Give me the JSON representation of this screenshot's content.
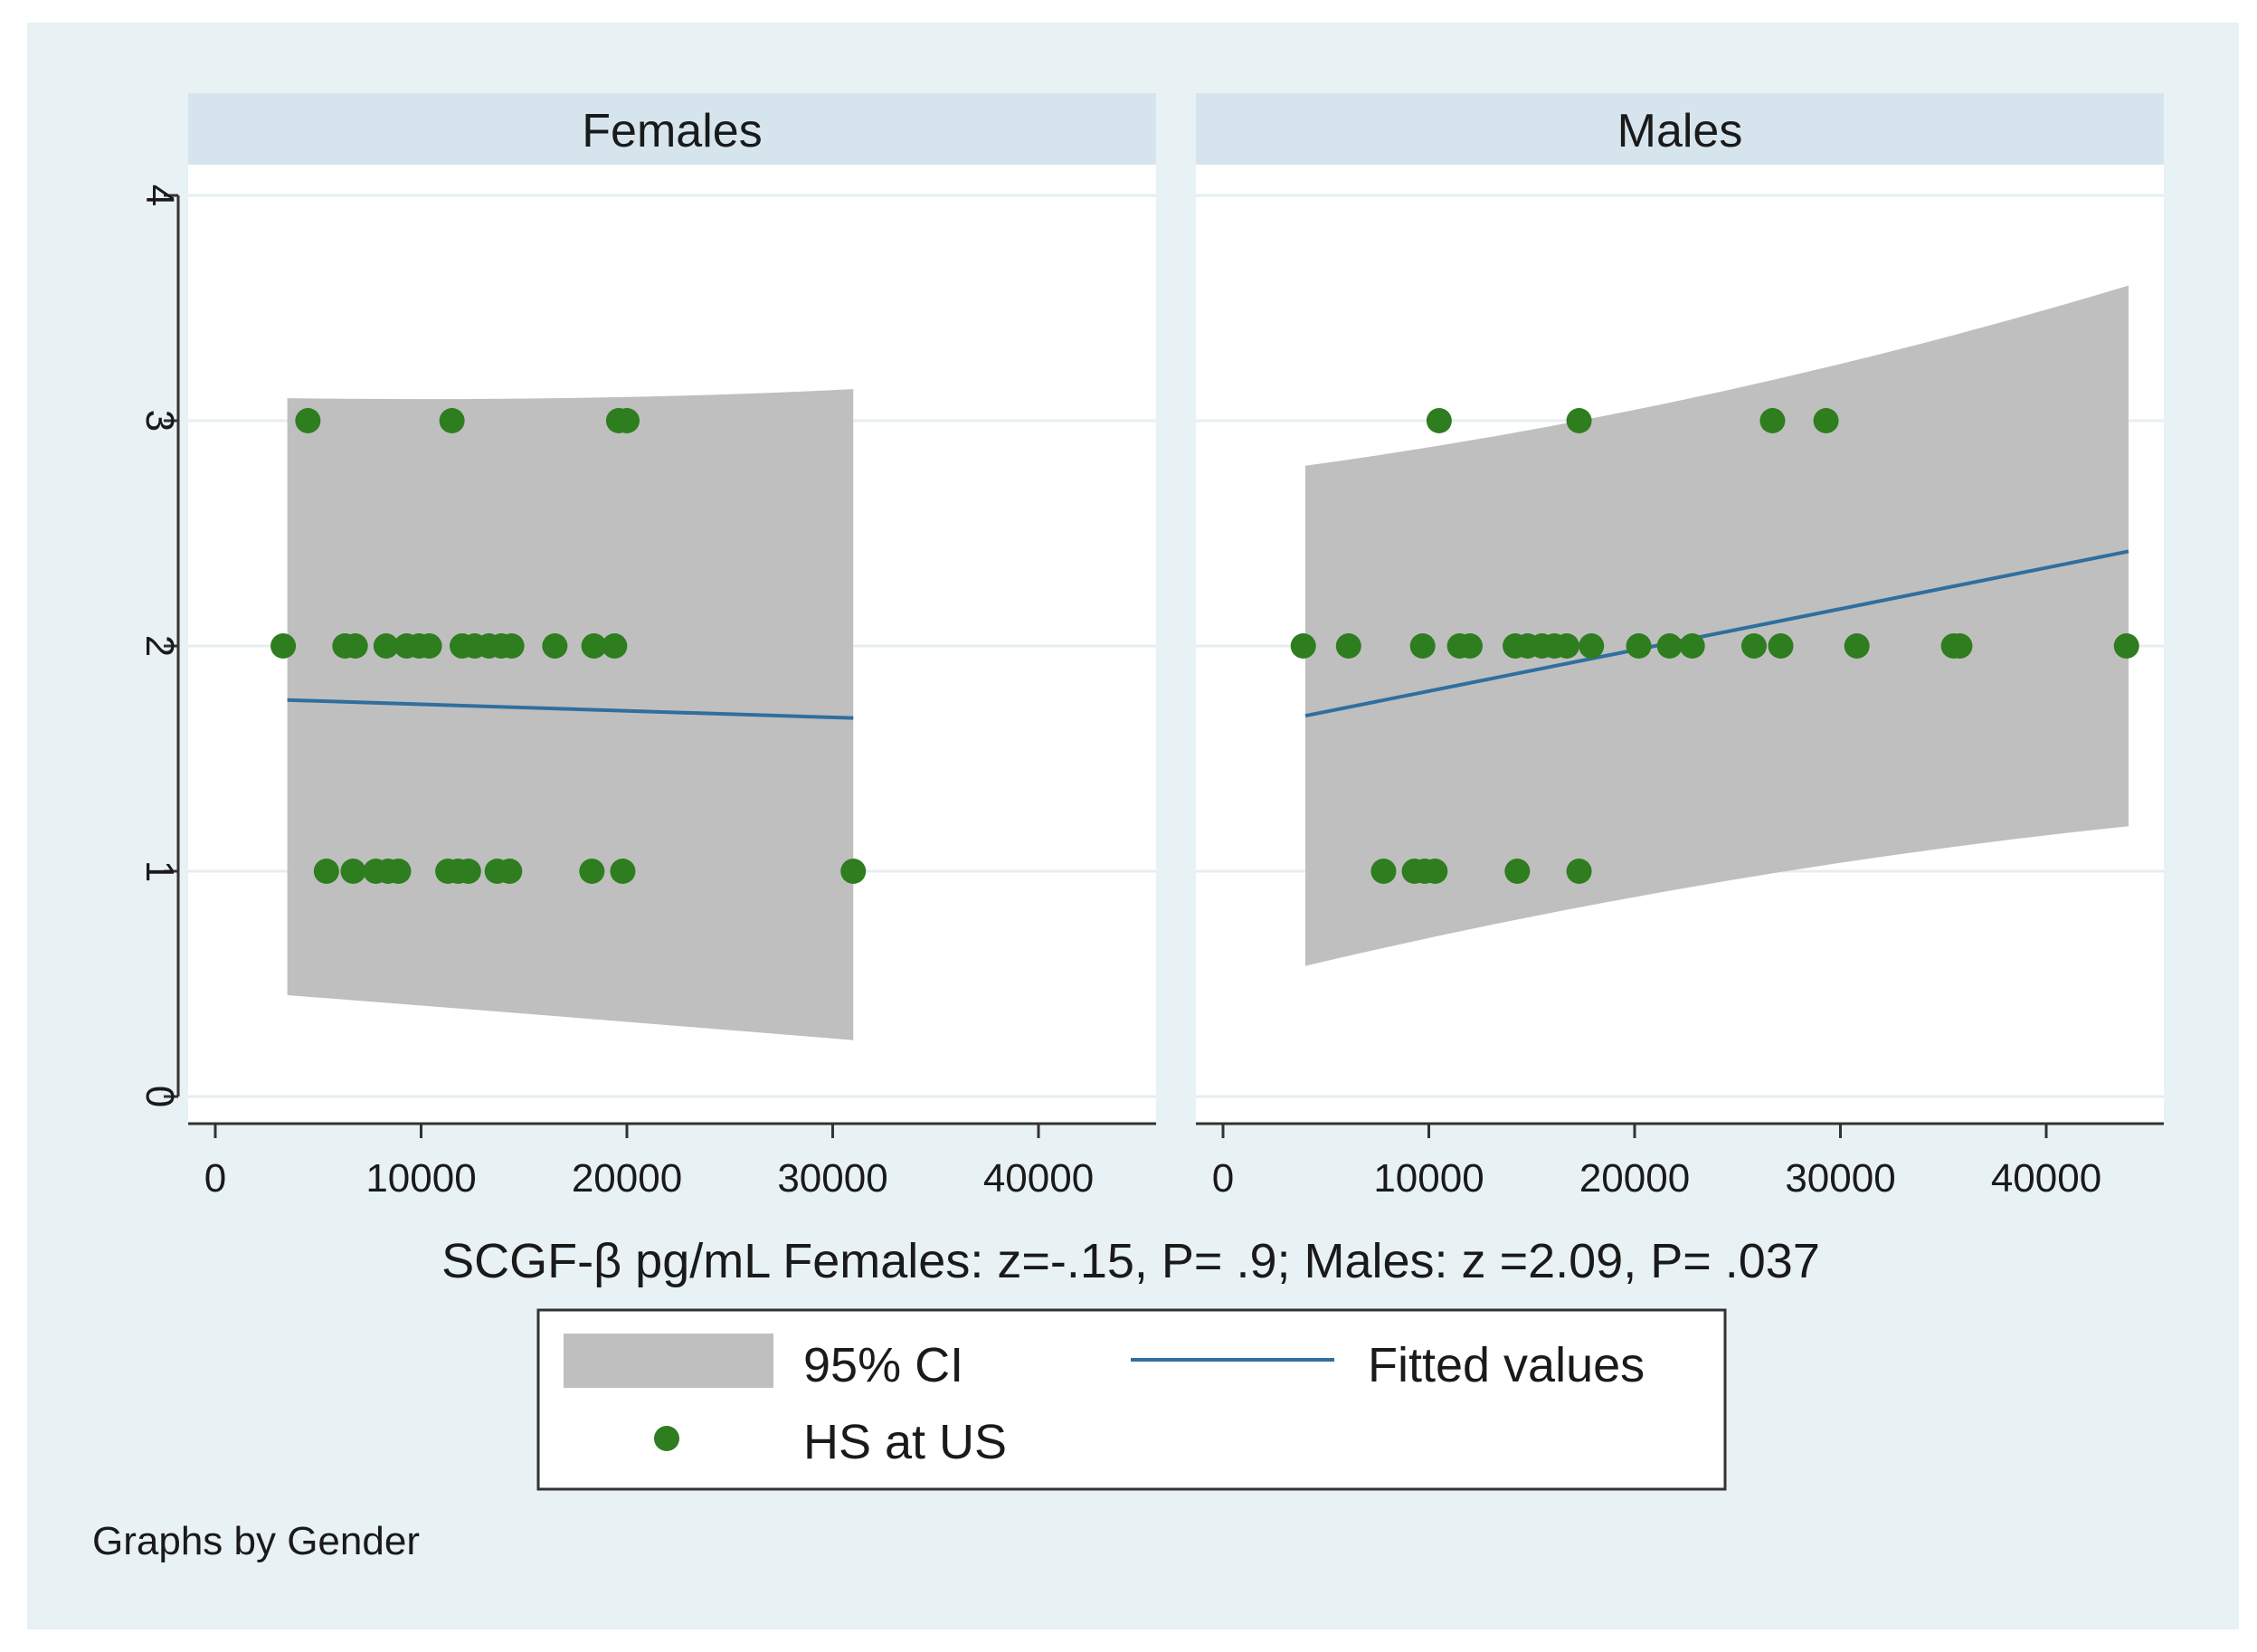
{
  "chart_data": {
    "type": "scatter",
    "title": "",
    "xlabel": "SCGF-β pg/mL Females: z=-.15, P= .9; Males: z =2.09, P= .037",
    "ylabel": "",
    "xlim": [
      0,
      45000
    ],
    "ylim": [
      0,
      4
    ],
    "xticks": [
      "0",
      "10000",
      "20000",
      "30000",
      "40000"
    ],
    "xtick_values": [
      0,
      10000,
      20000,
      30000,
      40000
    ],
    "yticks": [
      "0",
      "1",
      "2",
      "3",
      "4"
    ],
    "ytick_values": [
      0,
      1,
      2,
      3,
      4
    ],
    "grid": true,
    "legend_position": "bottom",
    "note": "Graphs by Gender",
    "legend": [
      {
        "key": "ci",
        "label": "95% CI",
        "color": "#bfbfbf"
      },
      {
        "key": "fit",
        "label": "Fitted values",
        "color": "#2f6f9f"
      },
      {
        "key": "points",
        "label": "HS at US",
        "color": "#2e7d1e"
      }
    ],
    "panels": [
      {
        "name": "Females",
        "ci": {
          "x": [
            3500,
            31000
          ],
          "lower": [
            0.45,
            0.25
          ],
          "upper": [
            3.1,
            3.14
          ],
          "mid_x": 18000,
          "mid_lower": 0.42,
          "mid_upper": 3.01
        },
        "fit": {
          "x": [
            3500,
            31000
          ],
          "y": [
            1.76,
            1.68
          ]
        },
        "points": [
          {
            "x": 4500,
            "y": 3
          },
          {
            "x": 11500,
            "y": 3
          },
          {
            "x": 19600,
            "y": 3
          },
          {
            "x": 20000,
            "y": 3
          },
          {
            "x": 3300,
            "y": 2
          },
          {
            "x": 6300,
            "y": 2
          },
          {
            "x": 6800,
            "y": 2
          },
          {
            "x": 8300,
            "y": 2
          },
          {
            "x": 9300,
            "y": 2
          },
          {
            "x": 9900,
            "y": 2
          },
          {
            "x": 10400,
            "y": 2
          },
          {
            "x": 12000,
            "y": 2
          },
          {
            "x": 12600,
            "y": 2
          },
          {
            "x": 13300,
            "y": 2
          },
          {
            "x": 13900,
            "y": 2
          },
          {
            "x": 14400,
            "y": 2
          },
          {
            "x": 16500,
            "y": 2
          },
          {
            "x": 18400,
            "y": 2
          },
          {
            "x": 19400,
            "y": 2
          },
          {
            "x": 5400,
            "y": 1
          },
          {
            "x": 6700,
            "y": 1
          },
          {
            "x": 7800,
            "y": 1
          },
          {
            "x": 8400,
            "y": 1
          },
          {
            "x": 8900,
            "y": 1
          },
          {
            "x": 11300,
            "y": 1
          },
          {
            "x": 11800,
            "y": 1
          },
          {
            "x": 12300,
            "y": 1
          },
          {
            "x": 13700,
            "y": 1
          },
          {
            "x": 14300,
            "y": 1
          },
          {
            "x": 18300,
            "y": 1
          },
          {
            "x": 19800,
            "y": 1
          },
          {
            "x": 31000,
            "y": 1
          }
        ]
      },
      {
        "name": "Males",
        "ci": {
          "x": [
            4000,
            44000
          ],
          "lower": [
            0.58,
            1.2
          ],
          "upper": [
            2.8,
            3.6
          ],
          "mid_x": 24000,
          "mid_lower": 1.01,
          "mid_upper": 3.05
        },
        "fit": {
          "x": [
            4000,
            44000
          ],
          "y": [
            1.69,
            2.42
          ]
        },
        "points": [
          {
            "x": 10500,
            "y": 3
          },
          {
            "x": 17300,
            "y": 3
          },
          {
            "x": 26700,
            "y": 3
          },
          {
            "x": 29300,
            "y": 3
          },
          {
            "x": 3900,
            "y": 2
          },
          {
            "x": 6100,
            "y": 2
          },
          {
            "x": 9700,
            "y": 2
          },
          {
            "x": 11500,
            "y": 2
          },
          {
            "x": 12000,
            "y": 2
          },
          {
            "x": 14200,
            "y": 2
          },
          {
            "x": 14800,
            "y": 2
          },
          {
            "x": 15500,
            "y": 2
          },
          {
            "x": 16100,
            "y": 2
          },
          {
            "x": 16700,
            "y": 2
          },
          {
            "x": 17900,
            "y": 2
          },
          {
            "x": 20200,
            "y": 2
          },
          {
            "x": 21700,
            "y": 2
          },
          {
            "x": 22800,
            "y": 2
          },
          {
            "x": 25800,
            "y": 2
          },
          {
            "x": 27100,
            "y": 2
          },
          {
            "x": 30800,
            "y": 2
          },
          {
            "x": 35500,
            "y": 2
          },
          {
            "x": 35800,
            "y": 2
          },
          {
            "x": 43900,
            "y": 2
          },
          {
            "x": 7800,
            "y": 1
          },
          {
            "x": 9300,
            "y": 1
          },
          {
            "x": 9800,
            "y": 1
          },
          {
            "x": 10300,
            "y": 1
          },
          {
            "x": 14300,
            "y": 1
          },
          {
            "x": 17300,
            "y": 1
          }
        ]
      }
    ]
  },
  "colors": {
    "outer_background": "#e8f1f4",
    "panel_header": "#d6e5ed",
    "plot_background": "#ffffff",
    "grid": "#e6eef2",
    "ci_fill": "#bfbfbf",
    "fit_line": "#2f6f9f",
    "points": "#2e7d1e",
    "axis": "#333333"
  }
}
